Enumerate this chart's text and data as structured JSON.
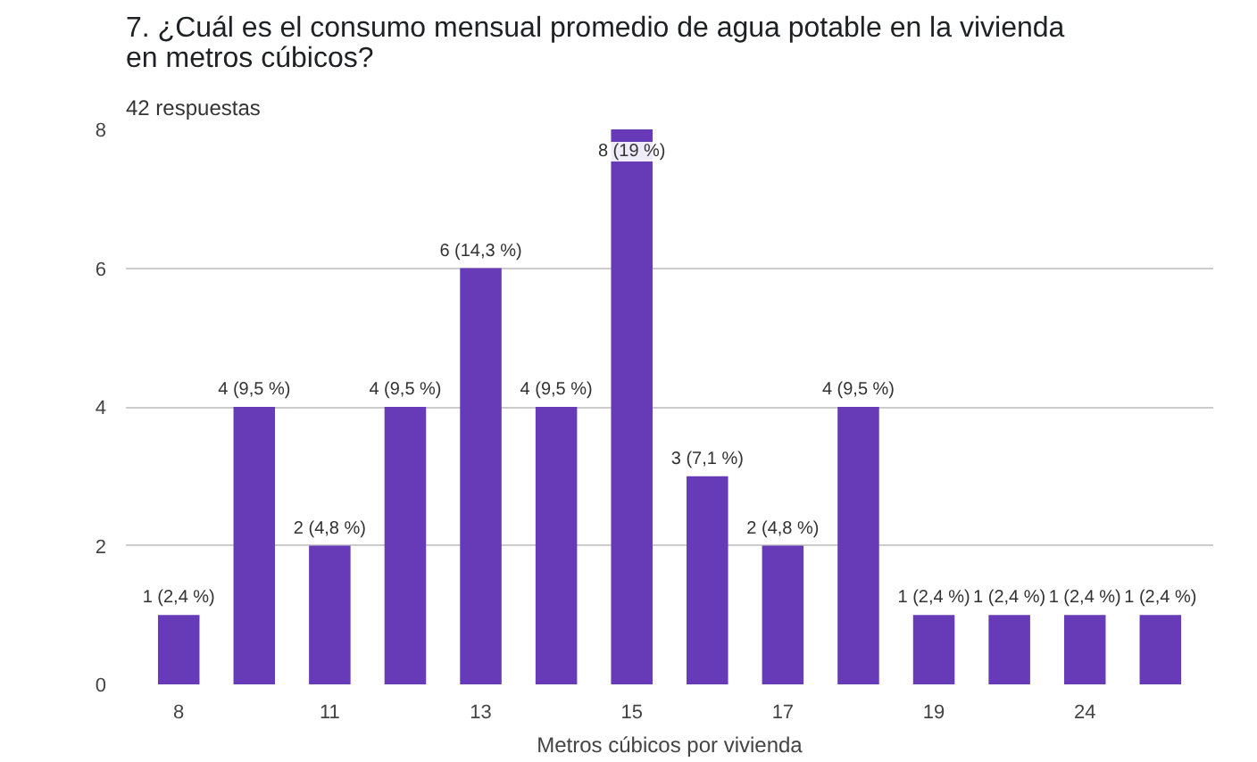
{
  "chart_data": {
    "type": "bar",
    "title": "7. ¿Cuál es el consumo mensual promedio de agua potable en la vivienda\nen metros cúbicos?",
    "subtitle": "42 respuestas",
    "xlabel": "Metros cúbicos por vivienda",
    "categories": [
      "8",
      null,
      "11",
      null,
      "13",
      null,
      "15",
      null,
      "17",
      null,
      "19",
      null,
      "24",
      null
    ],
    "values": [
      1,
      4,
      2,
      4,
      6,
      4,
      8,
      3,
      2,
      4,
      1,
      1,
      1,
      1
    ],
    "value_labels": [
      "1 (2,4 %)",
      "4 (9,5 %)",
      "2 (4,8 %)",
      "4 (9,5 %)",
      "6 (14,3 %)",
      "4 (9,5 %)",
      "8 (19 %)",
      "3 (7,1 %)",
      "2 (4,8 %)",
      "4 (9,5 %)",
      "1 (2,4 %)",
      "1 (2,4 %)",
      "1 (2,4 %)",
      "1 (2,4 %)"
    ],
    "color": "#673ab7",
    "ylim": [
      0,
      8
    ],
    "yticks": [
      0,
      2,
      4,
      6,
      8
    ],
    "grid": "y"
  }
}
